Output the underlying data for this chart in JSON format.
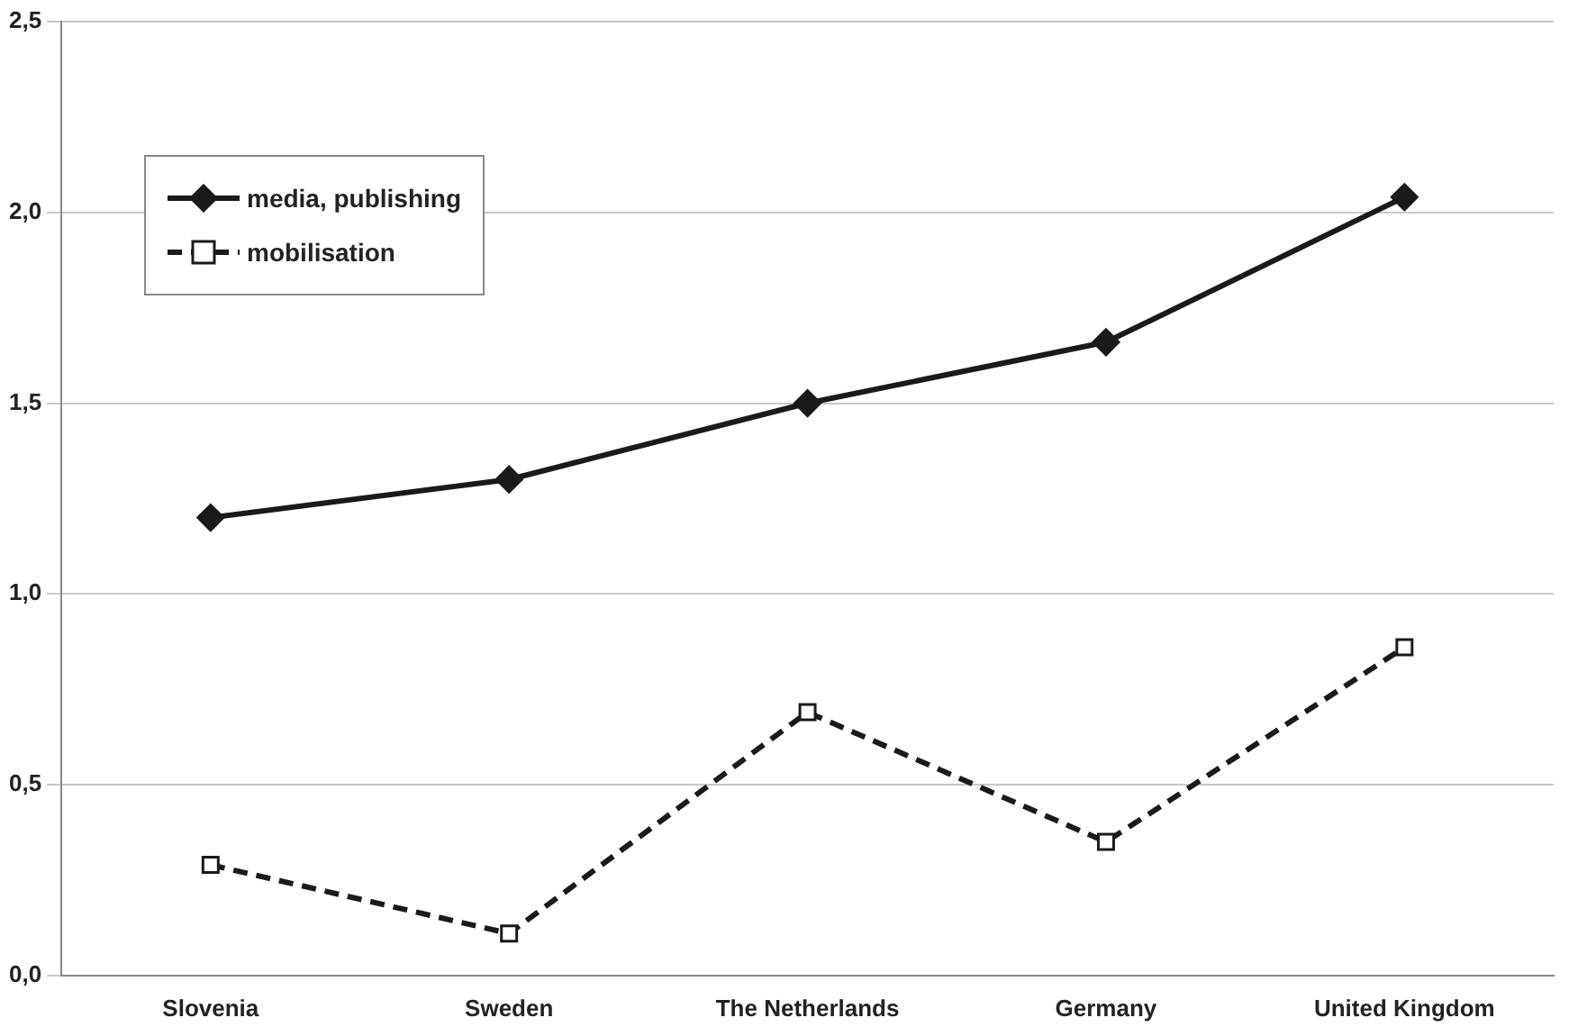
{
  "chart_data": {
    "type": "line",
    "categories": [
      "Slovenia",
      "Sweden",
      "The Netherlands",
      "Germany",
      "United Kingdom"
    ],
    "series": [
      {
        "name": "media, publishing",
        "color": "#1a1a1a",
        "values": [
          1.2,
          1.3,
          1.5,
          1.66,
          2.04
        ],
        "marker": "diamond",
        "line_style": "solid"
      },
      {
        "name": "mobilisation",
        "color": "#1a1a1a",
        "values": [
          0.29,
          0.11,
          0.69,
          0.35,
          0.86
        ],
        "marker": "square",
        "line_style": "dashed"
      }
    ],
    "ylim": [
      0,
      2.5
    ],
    "yticks": [
      {
        "value": 0,
        "label": "0,0"
      },
      {
        "value": 0.5,
        "label": "0,5"
      },
      {
        "value": 1,
        "label": "1,0"
      },
      {
        "value": 1.5,
        "label": "1,5"
      },
      {
        "value": 2,
        "label": "2,0"
      },
      {
        "value": 2.5,
        "label": "2,5"
      }
    ],
    "grid": "y",
    "legend": "top left"
  }
}
